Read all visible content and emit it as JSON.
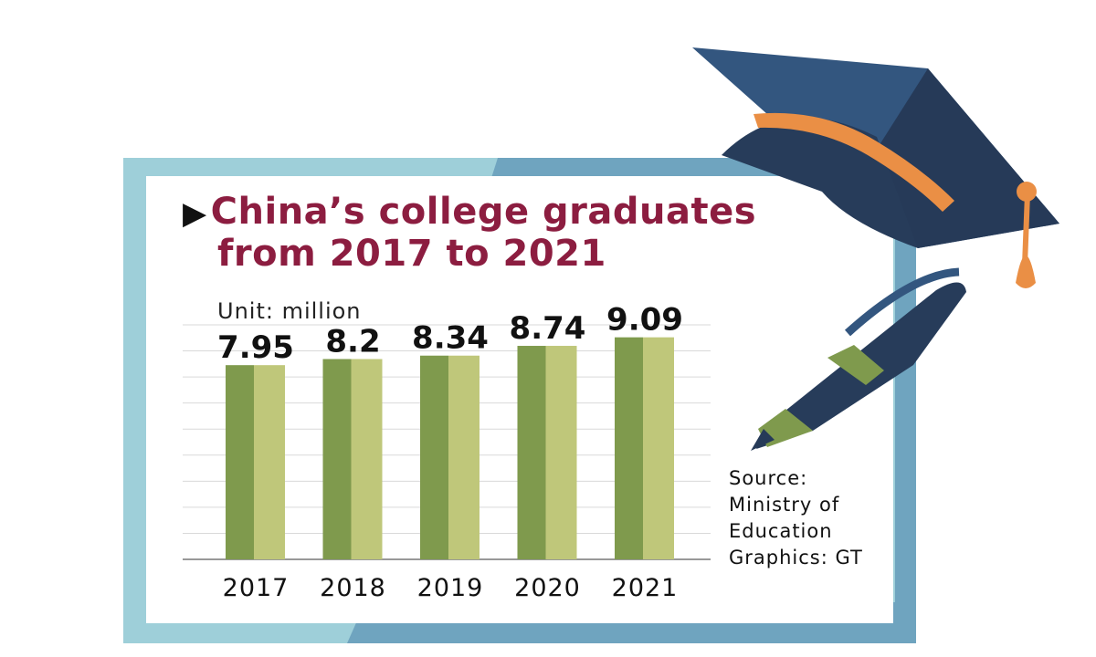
{
  "title_line1": "China’s college graduates",
  "title_line2": "from 2017 to 2021",
  "title_arrow": "▶",
  "unit_label": "Unit: million",
  "source_lines": [
    "Source:",
    "Ministry of",
    "Education",
    "Graphics: GT"
  ],
  "colors": {
    "frame_light": "#9ecfd9",
    "frame_dark": "#6fa4bf",
    "bar_dark": "#7f9a4d",
    "bar_light": "#bfc77a",
    "title": "#8c1d40",
    "cap_dark": "#273c5a",
    "cap_mid": "#33567f",
    "cap_band": "#ea8f45"
  },
  "icons": [
    "graduation-cap-icon",
    "pen-icon"
  ],
  "chart_data": {
    "type": "bar",
    "title": "China’s college graduates from 2017 to 2021",
    "categories": [
      "2017",
      "2018",
      "2019",
      "2020",
      "2021"
    ],
    "values": [
      7.95,
      8.2,
      8.34,
      8.74,
      9.09
    ],
    "data_labels": [
      "7.95",
      "8.2",
      "8.34",
      "8.74",
      "9.09"
    ],
    "unit": "Unit: million",
    "xlabel": "",
    "ylabel": "",
    "ylim": [
      0,
      9.6
    ],
    "grid": true,
    "legend": "none"
  }
}
